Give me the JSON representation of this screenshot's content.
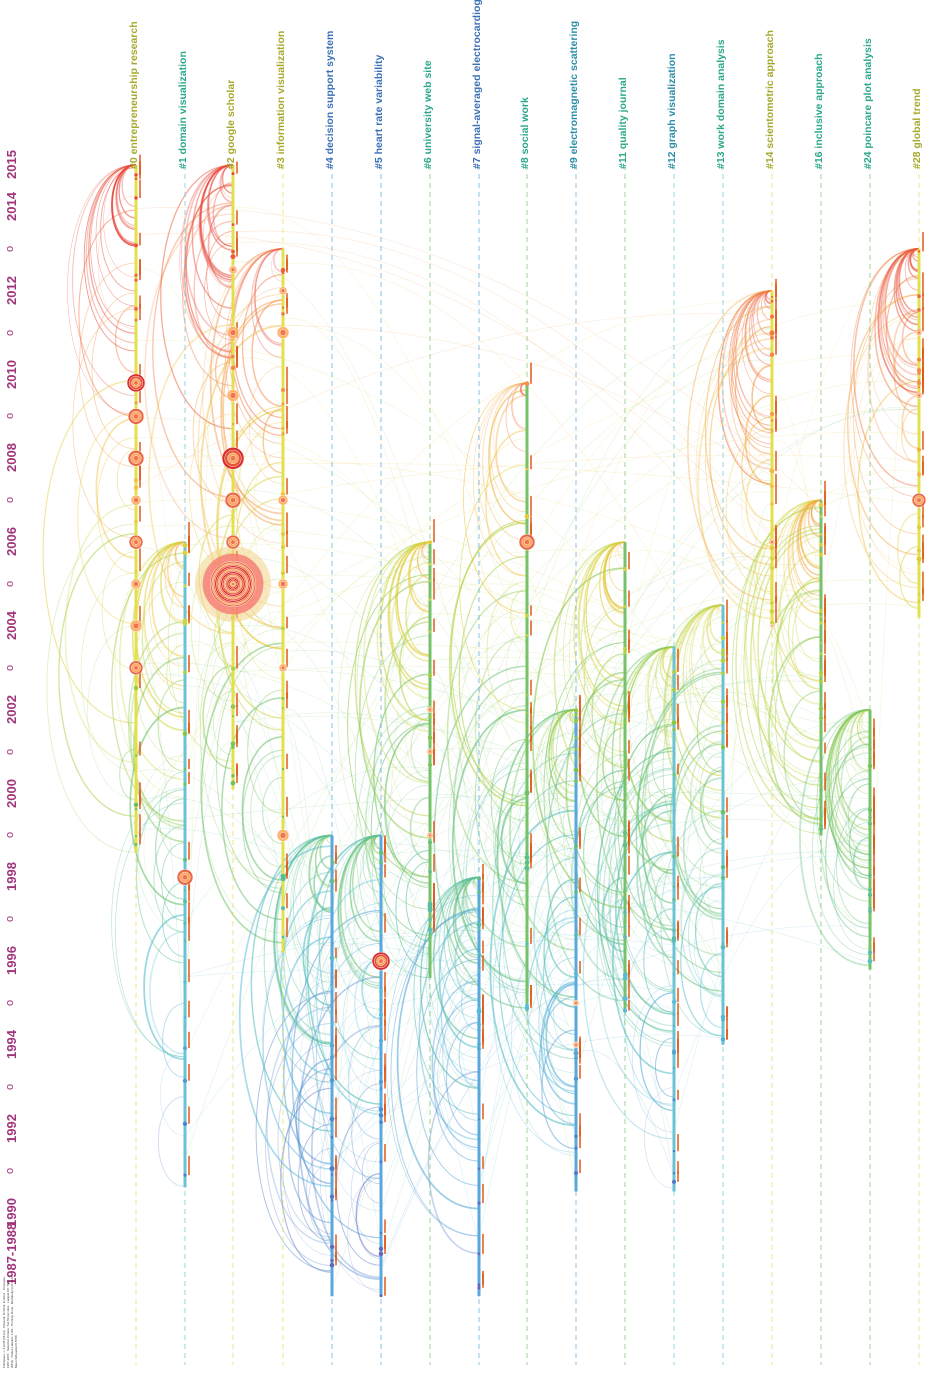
{
  "clusters": [
    {
      "id": "c0",
      "label": "#0 entrepreneurship research",
      "color": "#a6a82b",
      "line": "#e3e04c",
      "span": [
        1998.6,
        2015.0
      ]
    },
    {
      "id": "c1",
      "label": "#1 domain visualization",
      "color": "#2aa889",
      "line": "#69c3d4",
      "span": [
        1990.6,
        2006.0
      ]
    },
    {
      "id": "c2",
      "label": "#2 google scholar",
      "color": "#a6a82b",
      "line": "#e3e04c",
      "span": [
        2000.1,
        2015.0
      ]
    },
    {
      "id": "c3",
      "label": "#3 information visualization",
      "color": "#a6a82b",
      "line": "#e3e04c",
      "span": [
        1996.2,
        2013.0
      ]
    },
    {
      "id": "c4",
      "label": "#4 decision support system",
      "color": "#3b6fb6",
      "line": "#5aa7dd",
      "span": [
        1988.0,
        1999.0
      ]
    },
    {
      "id": "c5",
      "label": "#5 heart rate variability",
      "color": "#3b6fb6",
      "line": "#5aa7dd",
      "span": [
        1988.0,
        1999.0
      ]
    },
    {
      "id": "c6",
      "label": "#6 university web site",
      "color": "#2aa889",
      "line": "#75c26b",
      "span": [
        1995.6,
        2006.0
      ]
    },
    {
      "id": "c7",
      "label": "#7 signal-averaged electrocardiogram",
      "color": "#3b6fb6",
      "line": "#5aa7dd",
      "span": [
        1988.0,
        1998.0
      ]
    },
    {
      "id": "c8",
      "label": "#8 social work",
      "color": "#2aa889",
      "line": "#75c26b",
      "span": [
        1994.8,
        2009.8
      ]
    },
    {
      "id": "c9",
      "label": "#9 electromagnetic scattering",
      "color": "#2a8ea8",
      "line": "#5aa7dd",
      "span": [
        1990.5,
        2002.0
      ]
    },
    {
      "id": "c11",
      "label": "#11 quality journal",
      "color": "#2aa889",
      "line": "#75c26b",
      "span": [
        1994.8,
        2006.0
      ]
    },
    {
      "id": "c12",
      "label": "#12 graph visualization",
      "color": "#2a8ea8",
      "line": "#69c3d4",
      "span": [
        1990.5,
        2003.5
      ]
    },
    {
      "id": "c13",
      "label": "#13 work domain analysis",
      "color": "#2aa889",
      "line": "#69c3d4",
      "span": [
        1994.0,
        2004.5
      ]
    },
    {
      "id": "c14",
      "label": "#14 scientometric approach",
      "color": "#a6a82b",
      "line": "#e3e04c",
      "span": [
        2004.0,
        2012.0
      ]
    },
    {
      "id": "c16",
      "label": "#16 inclusive approach",
      "color": "#2aa889",
      "line": "#75c26b",
      "span": [
        1999.0,
        2007.0
      ]
    },
    {
      "id": "c24",
      "label": "#24 poincare plot analysis",
      "color": "#2aa889",
      "line": "#75c26b",
      "span": [
        1995.8,
        2002.0
      ]
    },
    {
      "id": "c28",
      "label": "#28 global trend",
      "color": "#a6a82b",
      "line": "#e3e04c",
      "span": [
        2004.2,
        2013.0
      ]
    }
  ],
  "years": [
    "2015",
    "2014",
    "o",
    "2012",
    "o",
    "2010",
    "o",
    "2008",
    "o",
    "2006",
    "o",
    "2004",
    "o",
    "2002",
    "o",
    "2000",
    "o",
    "1998",
    "o",
    "1996",
    "o",
    "1994",
    "o",
    "1992",
    "o",
    "1990",
    "1987-1988"
  ],
  "info_text": "CiteSpace, v. 3.9.R8 (64-bit) · Network: N=1011, E=2611 · Timespan: 1987-2015 · Selection Criteria: Top 50 per slice · Largest CC: 571 (56%) · Nodes Labeled: 1.0% · Pruning: None · Modularity Q=0.8147 · Mean Silhouette=0.5788",
  "node_colors": [
    "#d7191c",
    "#f26d4f",
    "#fdae61",
    "#e85a3a"
  ],
  "label_color": "#e05a1a",
  "hub_nodes": [
    {
      "cluster": "c2",
      "year": 2005.0,
      "size": 38
    },
    {
      "cluster": "c0",
      "year": 2009.8,
      "size": 9
    },
    {
      "cluster": "c0",
      "year": 2009.0,
      "size": 8
    },
    {
      "cluster": "c0",
      "year": 2008.0,
      "size": 8
    },
    {
      "cluster": "c0",
      "year": 2006.0,
      "size": 7
    },
    {
      "cluster": "c0",
      "year": 2003.0,
      "size": 7
    },
    {
      "cluster": "c0",
      "year": 2004.0,
      "size": 6
    },
    {
      "cluster": "c0",
      "year": 2005.0,
      "size": 5
    },
    {
      "cluster": "c0",
      "year": 2007.0,
      "size": 5
    },
    {
      "cluster": "c2",
      "year": 2008.0,
      "size": 11
    },
    {
      "cluster": "c2",
      "year": 2007.0,
      "size": 8
    },
    {
      "cluster": "c2",
      "year": 2006.0,
      "size": 7
    },
    {
      "cluster": "c2",
      "year": 2009.5,
      "size": 6
    },
    {
      "cluster": "c2",
      "year": 2011.0,
      "size": 6
    },
    {
      "cluster": "c2",
      "year": 2012.5,
      "size": 4
    },
    {
      "cluster": "c3",
      "year": 2011.0,
      "size": 6
    },
    {
      "cluster": "c3",
      "year": 2007.0,
      "size": 5
    },
    {
      "cluster": "c3",
      "year": 2005.0,
      "size": 5
    },
    {
      "cluster": "c3",
      "year": 1999.0,
      "size": 6
    },
    {
      "cluster": "c3",
      "year": 2003.0,
      "size": 4
    },
    {
      "cluster": "c3",
      "year": 2012.0,
      "size": 4
    },
    {
      "cluster": "c1",
      "year": 1998.0,
      "size": 8
    },
    {
      "cluster": "c5",
      "year": 1996.0,
      "size": 9
    },
    {
      "cluster": "c8",
      "year": 2006.0,
      "size": 8
    },
    {
      "cluster": "c28",
      "year": 2007.0,
      "size": 7
    },
    {
      "cluster": "c28",
      "year": 2011.0,
      "size": 3
    },
    {
      "cluster": "c28",
      "year": 2009.5,
      "size": 3
    },
    {
      "cluster": "c6",
      "year": 2001.0,
      "size": 3
    },
    {
      "cluster": "c6",
      "year": 1999.0,
      "size": 3
    },
    {
      "cluster": "c6",
      "year": 2002.0,
      "size": 3
    },
    {
      "cluster": "c9",
      "year": 1995.0,
      "size": 3
    },
    {
      "cluster": "c9",
      "year": 1994.0,
      "size": 3
    },
    {
      "cluster": "c14",
      "year": 2006.0,
      "size": 3
    },
    {
      "cluster": "c14",
      "year": 2004.0,
      "size": 2
    }
  ]
}
